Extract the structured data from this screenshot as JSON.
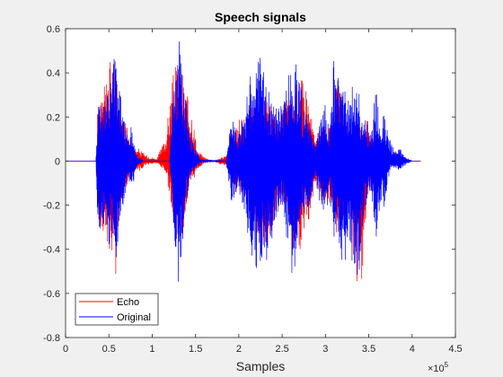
{
  "chart_data": {
    "type": "line",
    "title": "Speech signals",
    "xlabel": "Samples",
    "ylabel": "",
    "x_exponent_base": "×10",
    "x_exponent_power": "5",
    "xlim": [
      0,
      4.5
    ],
    "ylim": [
      -0.8,
      0.6
    ],
    "x_units_multiplier": 100000,
    "xticks": [
      0,
      0.5,
      1,
      1.5,
      2,
      2.5,
      3,
      3.5,
      4,
      4.5
    ],
    "xtick_labels": [
      "0",
      "0.5",
      "1",
      "1.5",
      "2",
      "2.5",
      "3",
      "3.5",
      "4",
      "4.5"
    ],
    "yticks": [
      -0.8,
      -0.6,
      -0.4,
      -0.2,
      0,
      0.2,
      0.4,
      0.6
    ],
    "ytick_labels": [
      "-0.8",
      "-0.6",
      "-0.4",
      "-0.2",
      "0",
      "0.2",
      "0.4",
      "0.6"
    ],
    "grid": false,
    "legend_position": "bottom-left",
    "series": [
      {
        "name": "Echo",
        "color": "#ff0000",
        "envelope": [
          [
            0.0,
            0.0,
            0.0
          ],
          [
            0.35,
            0.0,
            0.0
          ],
          [
            0.37,
            0.22,
            -0.28
          ],
          [
            0.45,
            0.36,
            -0.34
          ],
          [
            0.52,
            0.46,
            -0.42
          ],
          [
            0.58,
            0.47,
            -0.52
          ],
          [
            0.62,
            0.22,
            -0.2
          ],
          [
            0.7,
            0.18,
            -0.15
          ],
          [
            0.76,
            0.07,
            -0.05
          ],
          [
            0.84,
            0.06,
            -0.05
          ],
          [
            0.92,
            0.03,
            -0.02
          ],
          [
            1.05,
            0.01,
            -0.01
          ],
          [
            1.15,
            0.1,
            -0.05
          ],
          [
            1.25,
            0.42,
            -0.26
          ],
          [
            1.33,
            0.46,
            -0.4
          ],
          [
            1.4,
            0.3,
            -0.22
          ],
          [
            1.46,
            0.24,
            -0.11
          ],
          [
            1.52,
            0.05,
            -0.04
          ],
          [
            1.6,
            0.02,
            -0.01
          ],
          [
            1.7,
            0.0,
            0.0
          ],
          [
            1.88,
            0.03,
            -0.03
          ],
          [
            1.96,
            0.18,
            -0.14
          ],
          [
            2.05,
            0.2,
            -0.15
          ],
          [
            2.15,
            0.25,
            -0.24
          ],
          [
            2.25,
            0.3,
            -0.38
          ],
          [
            2.3,
            0.3,
            -0.38
          ],
          [
            2.38,
            0.24,
            -0.32
          ],
          [
            2.48,
            0.18,
            -0.2
          ],
          [
            2.55,
            0.31,
            -0.22
          ],
          [
            2.62,
            0.3,
            -0.4
          ],
          [
            2.7,
            0.4,
            -0.44
          ],
          [
            2.78,
            0.35,
            -0.34
          ],
          [
            2.88,
            0.1,
            -0.1
          ],
          [
            2.96,
            0.17,
            -0.2
          ],
          [
            3.05,
            0.15,
            -0.19
          ],
          [
            3.12,
            0.35,
            -0.35
          ],
          [
            3.2,
            0.3,
            -0.28
          ],
          [
            3.28,
            0.12,
            -0.2
          ],
          [
            3.35,
            0.15,
            -0.58
          ],
          [
            3.4,
            0.18,
            -0.66
          ],
          [
            3.48,
            0.2,
            -0.22
          ],
          [
            3.55,
            0.12,
            -0.13
          ],
          [
            3.62,
            0.08,
            -0.06
          ],
          [
            3.7,
            0.04,
            -0.04
          ],
          [
            3.8,
            0.04,
            -0.02
          ],
          [
            3.9,
            0.02,
            -0.01
          ],
          [
            4.0,
            0.0,
            0.0
          ],
          [
            4.1,
            0.0,
            0.0
          ]
        ]
      },
      {
        "name": "Original",
        "color": "#0000ff",
        "envelope": [
          [
            0.0,
            0.0,
            0.0
          ],
          [
            0.35,
            0.0,
            0.0
          ],
          [
            0.37,
            0.27,
            -0.3
          ],
          [
            0.42,
            0.3,
            -0.36
          ],
          [
            0.46,
            0.26,
            -0.33
          ],
          [
            0.5,
            0.34,
            -0.38
          ],
          [
            0.55,
            0.48,
            -0.36
          ],
          [
            0.58,
            0.5,
            -0.48
          ],
          [
            0.62,
            0.36,
            -0.38
          ],
          [
            0.66,
            0.25,
            -0.24
          ],
          [
            0.72,
            0.1,
            -0.12
          ],
          [
            0.76,
            0.16,
            -0.15
          ],
          [
            0.82,
            0.03,
            -0.03
          ],
          [
            0.9,
            0.0,
            0.0
          ],
          [
            1.2,
            0.0,
            0.0
          ],
          [
            1.24,
            0.3,
            -0.26
          ],
          [
            1.28,
            0.44,
            -0.44
          ],
          [
            1.31,
            0.55,
            -0.62
          ],
          [
            1.34,
            0.42,
            -0.42
          ],
          [
            1.38,
            0.34,
            -0.25
          ],
          [
            1.42,
            0.14,
            -0.12
          ],
          [
            1.48,
            0.08,
            -0.05
          ],
          [
            1.55,
            0.01,
            -0.01
          ],
          [
            1.85,
            0.0,
            0.0
          ],
          [
            1.88,
            0.07,
            -0.1
          ],
          [
            1.92,
            0.26,
            -0.22
          ],
          [
            1.98,
            0.13,
            -0.12
          ],
          [
            2.05,
            0.21,
            -0.2
          ],
          [
            2.12,
            0.38,
            -0.38
          ],
          [
            2.2,
            0.42,
            -0.52
          ],
          [
            2.26,
            0.5,
            -0.5
          ],
          [
            2.32,
            0.35,
            -0.46
          ],
          [
            2.38,
            0.3,
            -0.38
          ],
          [
            2.45,
            0.23,
            -0.2
          ],
          [
            2.52,
            0.3,
            -0.25
          ],
          [
            2.58,
            0.4,
            -0.48
          ],
          [
            2.64,
            0.45,
            -0.54
          ],
          [
            2.7,
            0.43,
            -0.3
          ],
          [
            2.75,
            0.23,
            -0.23
          ],
          [
            2.82,
            0.18,
            -0.2
          ],
          [
            2.88,
            0.06,
            -0.09
          ],
          [
            2.95,
            0.22,
            -0.21
          ],
          [
            3.0,
            0.28,
            -0.24
          ],
          [
            3.05,
            0.13,
            -0.17
          ],
          [
            3.1,
            0.5,
            -0.36
          ],
          [
            3.15,
            0.42,
            -0.42
          ],
          [
            3.2,
            0.38,
            -0.52
          ],
          [
            3.26,
            0.28,
            -0.38
          ],
          [
            3.32,
            0.37,
            -0.5
          ],
          [
            3.37,
            0.39,
            -0.59
          ],
          [
            3.42,
            0.2,
            -0.36
          ],
          [
            3.48,
            0.18,
            -0.18
          ],
          [
            3.52,
            0.12,
            -0.12
          ],
          [
            3.58,
            0.34,
            -0.4
          ],
          [
            3.63,
            0.17,
            -0.2
          ],
          [
            3.68,
            0.23,
            -0.21
          ],
          [
            3.75,
            0.1,
            -0.04
          ],
          [
            3.8,
            0.04,
            -0.04
          ],
          [
            3.85,
            0.07,
            -0.04
          ],
          [
            3.92,
            0.02,
            -0.02
          ],
          [
            4.0,
            0.0,
            0.0
          ],
          [
            4.1,
            0.0,
            0.0
          ]
        ]
      }
    ]
  }
}
